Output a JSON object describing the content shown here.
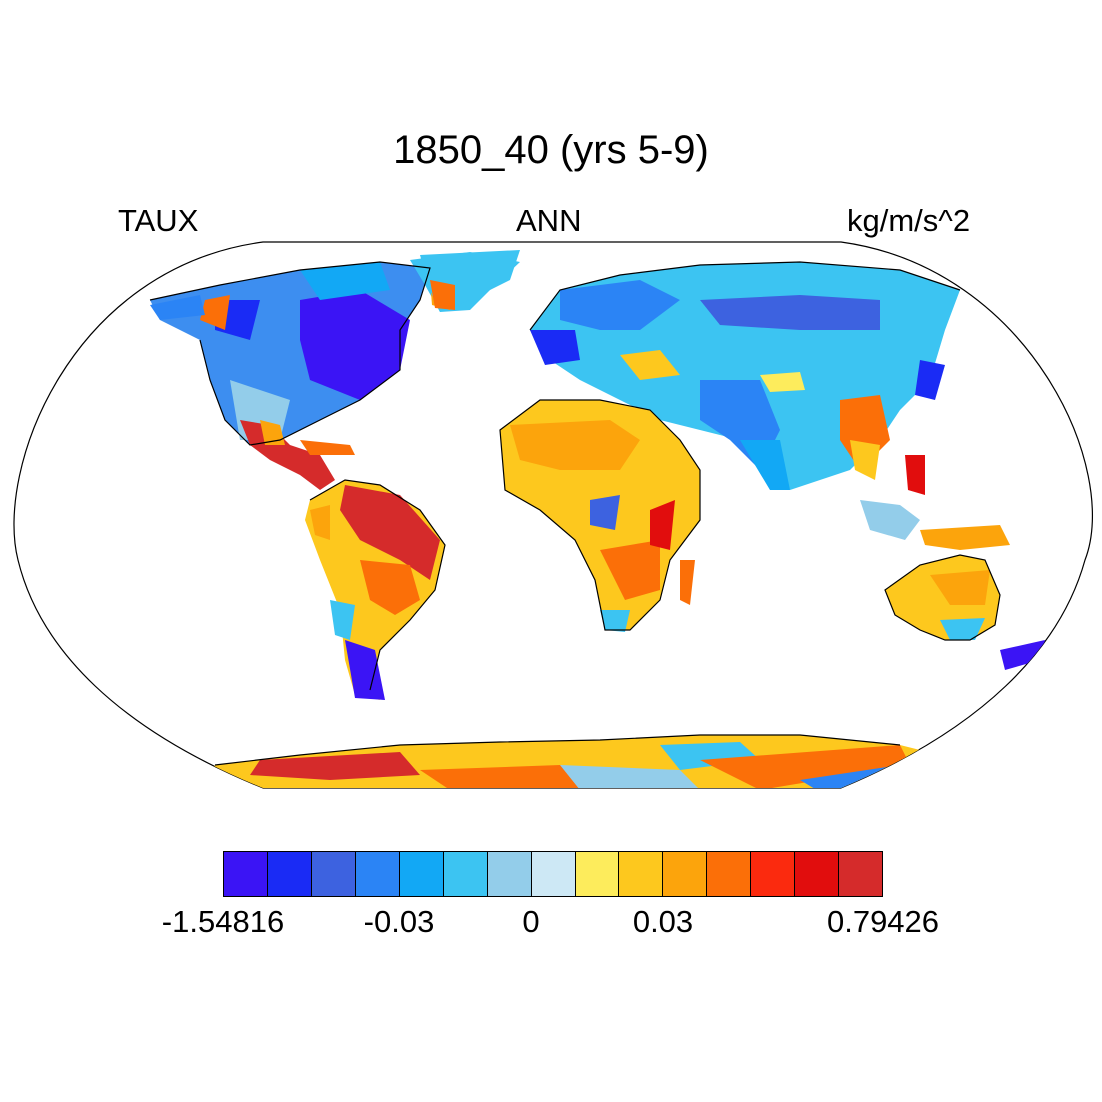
{
  "title": "1850_40 (yrs 5-9)",
  "variable": "TAUX",
  "season": "ANN",
  "units": "kg/m/s^2",
  "colorbar": {
    "colors": [
      "#3b14f5",
      "#1a2bf5",
      "#3d62e0",
      "#2b84f5",
      "#12a8f5",
      "#3cc4f2",
      "#93cdea",
      "#cde8f5",
      "#fdec5c",
      "#fdc81e",
      "#fca40c",
      "#fb6f08",
      "#fb2a0e",
      "#e10d0d",
      "#d52b2b"
    ],
    "labels": [
      "-1.54816",
      "-0.03",
      "0",
      "0.03",
      "0.79426"
    ]
  },
  "map": {
    "projection": "Robinson",
    "ocean_color": "#ffffff",
    "coastline_color": "#000000"
  }
}
